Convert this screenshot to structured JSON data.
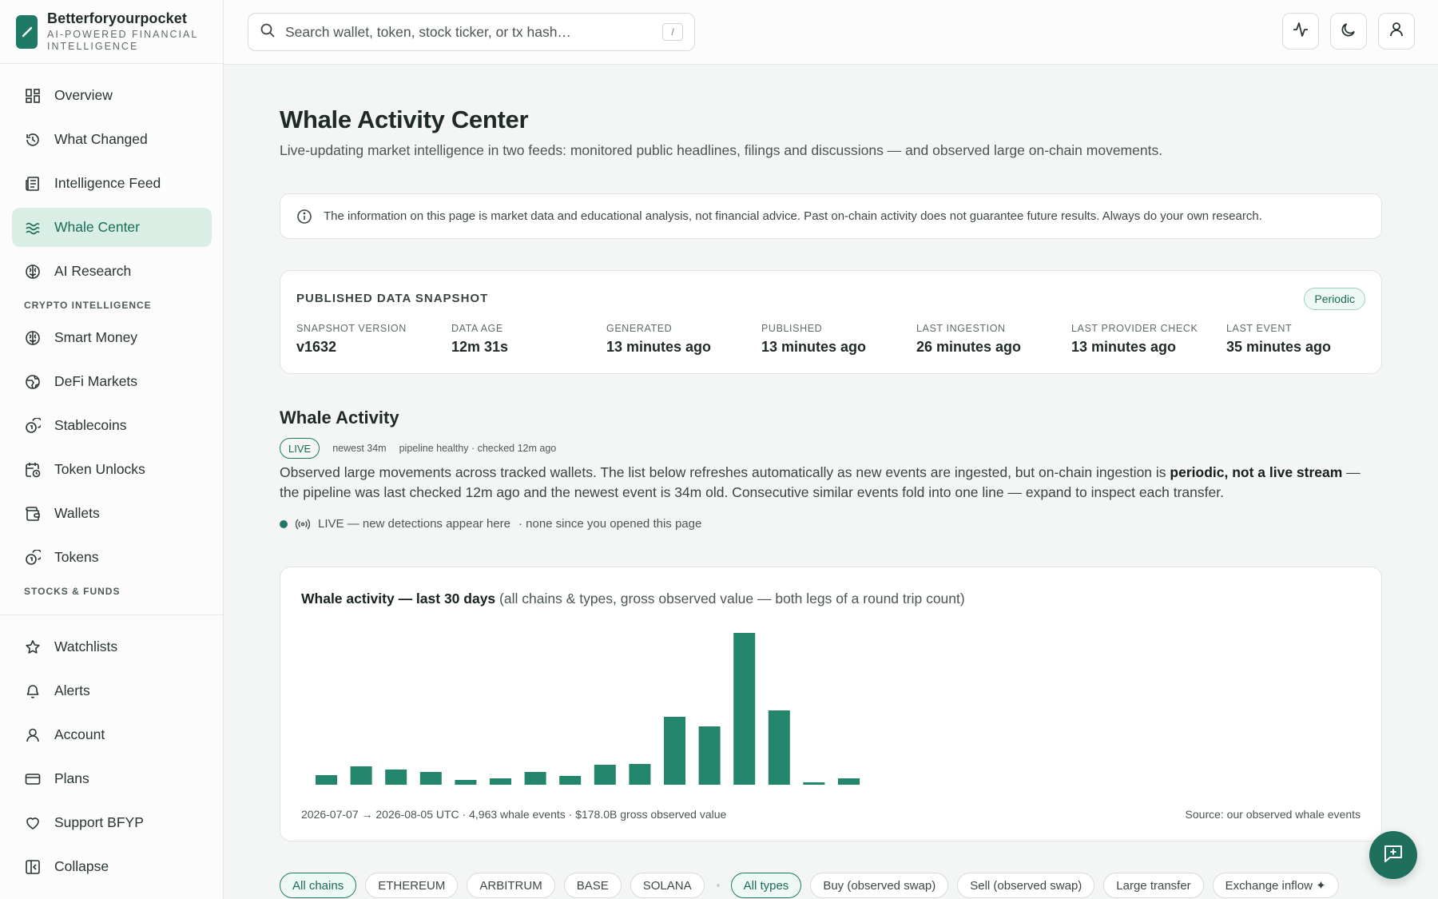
{
  "app": {
    "name": "Betterforyourpocket",
    "tagline": "AI-POWERED FINANCIAL INTELLIGENCE",
    "accent": "#1e7a64"
  },
  "search": {
    "placeholder": "Search wallet, token, stock ticker, or tx hash…",
    "shortcut": "/"
  },
  "topbar": {
    "buttons": [
      "activity-icon",
      "moon-icon",
      "user-icon"
    ]
  },
  "sidebar": {
    "primary": [
      {
        "label": "Overview",
        "icon": "grid-icon"
      },
      {
        "label": "What Changed",
        "icon": "history-icon"
      },
      {
        "label": "Intelligence Feed",
        "icon": "newspaper-icon"
      },
      {
        "label": "Whale Center",
        "icon": "waves-icon",
        "active": true
      },
      {
        "label": "AI Research",
        "icon": "brain-icon"
      }
    ],
    "crypto_section": "CRYPTO INTELLIGENCE",
    "crypto": [
      {
        "label": "Smart Money",
        "icon": "brain-icon"
      },
      {
        "label": "DeFi Markets",
        "icon": "globe-icon"
      },
      {
        "label": "Stablecoins",
        "icon": "coins-icon"
      },
      {
        "label": "Token Unlocks",
        "icon": "calendar-clock-icon"
      },
      {
        "label": "Wallets",
        "icon": "wallet-icon"
      },
      {
        "label": "Tokens",
        "icon": "coins-icon"
      }
    ],
    "stocks_section": "STOCKS & FUNDS",
    "bottom": [
      {
        "label": "Watchlists",
        "icon": "star-icon"
      },
      {
        "label": "Alerts",
        "icon": "bell-icon"
      },
      {
        "label": "Account",
        "icon": "user-icon"
      },
      {
        "label": "Plans",
        "icon": "credit-card-icon"
      },
      {
        "label": "Support BFYP",
        "icon": "heart-icon"
      },
      {
        "label": "Collapse",
        "icon": "collapse-icon"
      }
    ]
  },
  "page": {
    "title": "Whale Activity Center",
    "subtitle": "Live-updating market intelligence in two feeds: monitored public headlines, filings and discussions — and observed large on-chain movements.",
    "disclaimer": "The information on this page is market data and educational analysis, not financial advice. Past on-chain activity does not guarantee future results. Always do your own research."
  },
  "snapshot": {
    "title": "PUBLISHED DATA SNAPSHOT",
    "badge": "Periodic",
    "cells": [
      {
        "label": "SNAPSHOT VERSION",
        "value": "v1632"
      },
      {
        "label": "DATA AGE",
        "value": "12m 31s"
      },
      {
        "label": "GENERATED",
        "value": "13 minutes ago"
      },
      {
        "label": "PUBLISHED",
        "value": "13 minutes ago"
      },
      {
        "label": "LAST INGESTION",
        "value": "26 minutes ago"
      },
      {
        "label": "LAST PROVIDER CHECK",
        "value": "13 minutes ago"
      },
      {
        "label": "LAST EVENT",
        "value": "35 minutes ago"
      }
    ]
  },
  "whale": {
    "title": "Whale Activity",
    "live_badge": "LIVE",
    "newest": "newest 34m",
    "pipeline": "pipeline healthy · checked 12m ago",
    "para_pre": "Observed large movements across tracked wallets. The list below refreshes automatically as new events are ingested, but on-chain ingestion is ",
    "para_bold": "periodic, not a live stream",
    "para_post": " — the pipeline was last checked 12m ago and the newest event is 34m old. Consecutive similar events fold into one line — expand to inspect each transfer.",
    "live_line": "LIVE — new detections appear here",
    "live_note": "· none since you opened this page"
  },
  "chart_card": {
    "title_bold": "Whale activity — last 30 days",
    "title_rest": " (all chains & types, gross observed value — both legs of a round trip count)",
    "footer_left": "2026-07-07 → 2026-08-05 UTC · 4,963 whale events · $178.0B gross observed value",
    "footer_right": "Source: our observed whale events"
  },
  "chart_data": {
    "type": "bar",
    "title": "Whale activity — last 30 days",
    "series": [
      {
        "values": [
          1.2,
          2.3,
          1.9,
          1.6,
          0.6,
          0.8,
          1.6,
          1.1,
          2.5,
          2.6,
          8.5,
          7.3,
          19.0,
          9.3,
          0.3,
          0.8
        ]
      }
    ],
    "ylim": [
      0,
      20
    ],
    "grid": false,
    "color": "#23856c"
  },
  "filters": {
    "chains": [
      {
        "label": "All chains",
        "active": true
      },
      {
        "label": "ETHEREUM"
      },
      {
        "label": "ARBITRUM"
      },
      {
        "label": "BASE"
      },
      {
        "label": "SOLANA"
      }
    ],
    "types": [
      {
        "label": "All types",
        "active": true
      },
      {
        "label": "Buy (observed swap)"
      },
      {
        "label": "Sell (observed swap)"
      },
      {
        "label": "Large transfer"
      },
      {
        "label": "Exchange inflow ✦"
      }
    ]
  }
}
